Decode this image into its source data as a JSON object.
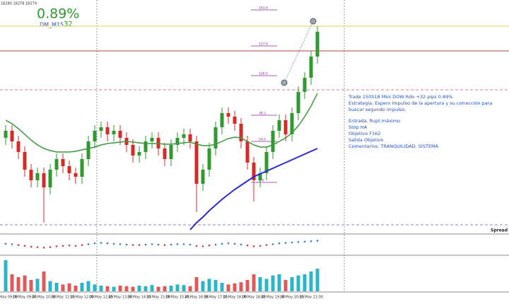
{
  "chart_data": {
    "type": "candlestick",
    "quote": "18280 18278 18279",
    "result": "0.89%",
    "indicator_name": "DM_M15",
    "indicator_value": "32",
    "spread_label": "Spread",
    "note": [
      "Trade 150518 Mini DOW Rdo +32 pips  0.89%",
      "Estrategia. Espero impulso de la apertura y su corrección para buscar segundo impulso.",
      "Entrada. Rupt máximo",
      "Stop HA",
      "Objetivo F162",
      "Salida Objetivo",
      "Comentarios. TRANQUILIDAD. SISTEMA"
    ],
    "categories": [
      "18 May 09:00",
      null,
      null,
      "18 May 09:45",
      null,
      null,
      "18 May 10:30",
      null,
      null,
      "18 May 11:15",
      null,
      null,
      "18 May 12:00",
      null,
      null,
      "18 May 12:45",
      null,
      null,
      "18 May 13:30",
      null,
      null,
      "18 May 14:15",
      null,
      null,
      "18 May 15:00",
      null,
      null,
      "18 May 15:45",
      null,
      null,
      "18 May 16:30",
      null,
      null,
      "18 May 17:15",
      null,
      null,
      "18 May 18:00",
      null,
      null,
      "18 May 18:45",
      null,
      null,
      "18 May 19:30",
      null,
      null,
      "18 May 20:15",
      null,
      null,
      "18 May 21:00",
      null
    ],
    "open": [
      24705,
      24715,
      24700,
      24685,
      24660,
      24645,
      24655,
      24635,
      24660,
      24675,
      24665,
      24655,
      24650,
      24675,
      24700,
      24715,
      24720,
      24710,
      24715,
      24705,
      24695,
      24680,
      24685,
      24700,
      24705,
      24690,
      24675,
      24695,
      24705,
      24710,
      24700,
      24640,
      24660,
      24690,
      24720,
      24740,
      24735,
      24725,
      24700,
      24670,
      24645,
      24655,
      24685,
      24715,
      24730,
      24710,
      24740,
      24770,
      24790,
      24820
    ],
    "high": [
      24723,
      24723,
      24708,
      24693,
      24668,
      24663,
      24663,
      24668,
      24683,
      24683,
      24673,
      24663,
      24683,
      24708,
      24723,
      24728,
      24728,
      24723,
      24723,
      24713,
      24703,
      24693,
      24708,
      24713,
      24713,
      24698,
      24703,
      24713,
      24718,
      24718,
      24708,
      24668,
      24698,
      24728,
      24748,
      24748,
      24743,
      24733,
      24708,
      24678,
      24663,
      24693,
      24723,
      24738,
      24738,
      24748,
      24778,
      24798,
      24828,
      24863
    ],
    "low": [
      24695,
      24690,
      24675,
      24650,
      24635,
      24635,
      24585,
      24625,
      24650,
      24655,
      24645,
      24640,
      24640,
      24665,
      24690,
      24705,
      24700,
      24700,
      24695,
      24685,
      24670,
      24670,
      24675,
      24690,
      24680,
      24665,
      24665,
      24685,
      24695,
      24690,
      24600,
      24630,
      24650,
      24680,
      24710,
      24725,
      24715,
      24690,
      24660,
      24615,
      24635,
      24645,
      24675,
      24705,
      24700,
      24700,
      24730,
      24760,
      24780,
      24810
    ],
    "close": [
      24715,
      24700,
      24685,
      24660,
      24645,
      24655,
      24635,
      24660,
      24675,
      24665,
      24655,
      24650,
      24675,
      24700,
      24715,
      24720,
      24710,
      24715,
      24705,
      24695,
      24680,
      24685,
      24700,
      24705,
      24690,
      24675,
      24695,
      24705,
      24710,
      24700,
      24640,
      24660,
      24690,
      24720,
      24740,
      24735,
      24725,
      24700,
      24670,
      24645,
      24655,
      24685,
      24715,
      24730,
      24710,
      24740,
      24770,
      24790,
      24820,
      24855
    ],
    "up_color": "#2f9a2f",
    "down_color": "#d42a2a",
    "ylim": [
      24570,
      24900
    ],
    "lines": [
      {
        "color": "#3a9a3a",
        "values": [
          24730,
          24725,
          24718,
          24710,
          24702,
          24695,
          24690,
          24687,
          24685,
          24685,
          24685,
          24686,
          24688,
          24690,
          24692,
          24695,
          24697,
          24698,
          24699,
          24700,
          24699,
          24698,
          24697,
          24697,
          24697,
          24696,
          24696,
          24697,
          24698,
          24699,
          24696,
          24694,
          24694,
          24696,
          24700,
          24704,
          24706,
          24705,
          24700,
          24695,
          24692,
          24692,
          24695,
          24700,
          24705,
          24712,
          24722,
          24735,
          24750,
          24768
        ]
      },
      {
        "color": "#2a2ad0",
        "values": [
          null,
          null,
          null,
          null,
          null,
          null,
          null,
          null,
          null,
          null,
          null,
          null,
          null,
          null,
          null,
          null,
          null,
          null,
          null,
          null,
          null,
          null,
          null,
          null,
          null,
          null,
          null,
          null,
          null,
          24575,
          24585,
          24593,
          24602,
          24610,
          24618,
          24625,
          24632,
          24638,
          24644,
          24650,
          24654,
          24658,
          24662,
          24666,
          24670,
          24674,
          24678,
          24682,
          24686,
          24690
        ]
      }
    ],
    "levels": [
      {
        "value": 24863,
        "color": "#e3d65a",
        "dashed": false
      },
      {
        "value": 24828,
        "color": "#d23a3a",
        "dashed": false
      },
      {
        "value": 24773,
        "color": "#e07a8a",
        "dashed": true
      },
      {
        "value": 24582,
        "color": "#9a7ad0",
        "dashed": true
      }
    ],
    "fib": [
      {
        "label": "161.8",
        "value": 24886
      },
      {
        "label": "127.8",
        "value": 24835
      },
      {
        "label": "100.0",
        "value": 24793
      },
      {
        "label": "38.2",
        "value": 24737
      },
      {
        "label": "50.0",
        "value": 24700
      },
      {
        "label": "0.0",
        "value": 24642
      }
    ],
    "fib_color": "#8a2a9a",
    "oscillator": {
      "ylim": [
        -2,
        2
      ],
      "up_color": "#3a7ad0",
      "down_color": "#d43a3a",
      "values": [
        0.2,
        0.1,
        -0.1,
        -0.3,
        -0.5,
        -0.6,
        -0.7,
        -0.6,
        -0.4,
        -0.3,
        -0.2,
        -0.3,
        -0.1,
        0.1,
        0.3,
        0.4,
        0.3,
        0.2,
        0.1,
        0.0,
        -0.1,
        -0.1,
        0.0,
        0.1,
        0.0,
        -0.1,
        0.0,
        0.1,
        0.1,
        0.0,
        -0.3,
        -0.4,
        -0.2,
        0.0,
        0.2,
        0.3,
        0.2,
        0.0,
        -0.2,
        -0.4,
        -0.3,
        -0.1,
        0.1,
        0.3,
        0.4,
        0.5,
        0.6,
        0.7,
        0.8,
        0.9
      ]
    },
    "volume": {
      "ylim": [
        0,
        60
      ],
      "up_color": "#2bb5c8",
      "down_color": "#e05a5a",
      "values": [
        55,
        30,
        25,
        28,
        20,
        22,
        35,
        18,
        15,
        12,
        14,
        10,
        15,
        18,
        12,
        10,
        9,
        8,
        10,
        9,
        8,
        10,
        9,
        11,
        8,
        9,
        10,
        12,
        11,
        9,
        25,
        18,
        22,
        20,
        15,
        12,
        14,
        16,
        20,
        30,
        25,
        22,
        28,
        30,
        20,
        25,
        28,
        30,
        35,
        40
      ]
    }
  }
}
